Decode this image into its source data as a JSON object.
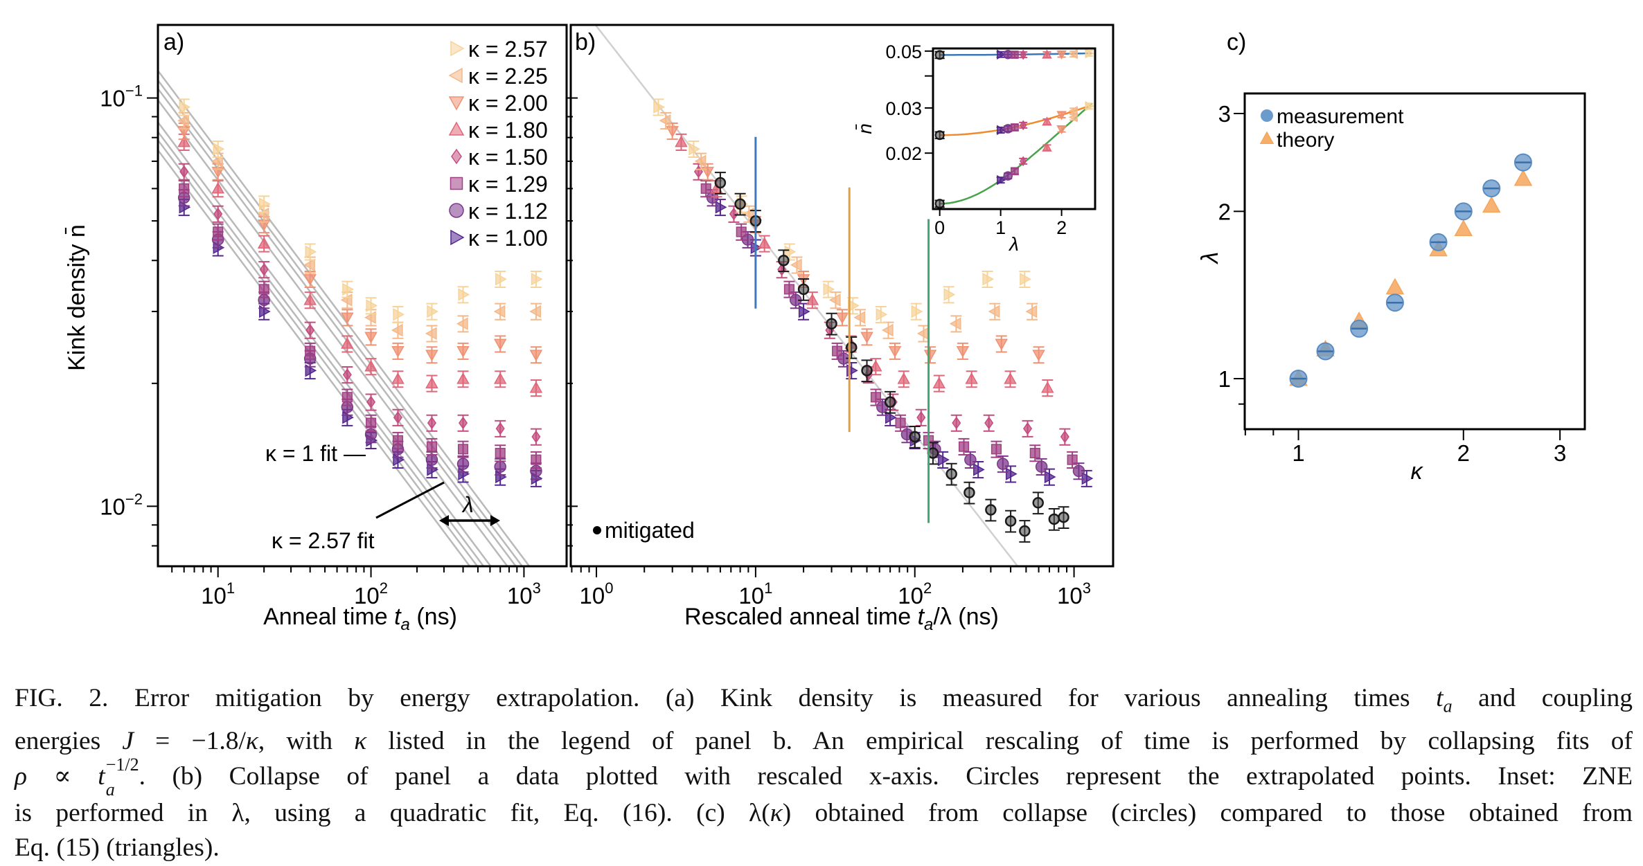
{
  "figure": {
    "caption_lines": [
      [
        {
          "t": "FIG. 2."
        },
        {
          "t": "   Error mitigation by energy extrapolation. (a) Kink density is measured for various annealing times "
        },
        {
          "t": "t",
          "s": "i"
        },
        {
          "t": "a",
          "s": "sub"
        },
        {
          "t": " and coupling"
        }
      ],
      [
        {
          "t": "energies "
        },
        {
          "t": "J",
          "s": "i"
        },
        {
          "t": " = −1.8/"
        },
        {
          "t": "κ",
          "s": "i"
        },
        {
          "t": ", with "
        },
        {
          "t": "κ",
          "s": "i"
        },
        {
          "t": " listed in the legend of panel b. An empirical rescaling of time is performed by collapsing fits of"
        }
      ],
      [
        {
          "t": "ρ",
          "s": "i"
        },
        {
          "t": " ∝ "
        },
        {
          "t": "t",
          "s": "i"
        },
        {
          "t": "a|−1/2",
          "s": "subsup"
        },
        {
          "t": ". (b) Collapse of panel a data plotted with rescaled x-axis. Circles represent the extrapolated points. Inset: ZNE"
        }
      ],
      [
        {
          "t": "is performed in λ, using a quadratic fit, Eq. (16). (c) λ("
        },
        {
          "t": "κ",
          "s": "i"
        },
        {
          "t": ") obtained from collapse (circles) compared to those obtained from"
        }
      ],
      [
        {
          "t": "Eq. (15) (triangles)."
        }
      ]
    ]
  },
  "chart_data": [
    {
      "panel": "a",
      "panel_label": "a)",
      "type": "scatter",
      "x_scale": "log",
      "y_scale": "log",
      "xlabel": "Anneal time t_a (ns)",
      "xlabel_parts": {
        "pre": "Anneal time ",
        "var": "t",
        "sub": "a",
        "post": " (ns)"
      },
      "ylabel": "Kink density n̄",
      "xlim": [
        4.05,
        1900
      ],
      "ylim": [
        0.00713,
        0.151
      ],
      "x_ticks": [
        {
          "value": 10,
          "base": "10",
          "exp": "1"
        },
        {
          "value": 100,
          "base": "10",
          "exp": "2"
        },
        {
          "value": 1000,
          "base": "10",
          "exp": "3"
        }
      ],
      "y_ticks": [
        {
          "value": 0.1,
          "base": "10",
          "exp": "−1"
        },
        {
          "value": 0.01,
          "base": "10",
          "exp": "−2"
        }
      ],
      "grid": false,
      "legend_placement": "top-right",
      "error_fraction": 0.045,
      "fit": {
        "prefactor": 0.15,
        "exponent": -0.5,
        "color": "#b9b9b9"
      },
      "annotations": {
        "kappa1_fit": "κ = 1 fit —",
        "kappa257_fit": "κ = 2.57 fit",
        "lambda": "λ"
      },
      "series": [
        {
          "name": "κ = 2.57",
          "kappa": 2.57,
          "marker": "triangle-right",
          "color": "#f7d39a",
          "t": [
            6,
            10,
            20,
            40,
            70,
            100,
            150,
            250,
            400,
            700,
            1200
          ],
          "n": [
            0.095,
            0.075,
            0.055,
            0.042,
            0.034,
            0.031,
            0.0295,
            0.03,
            0.033,
            0.036,
            0.036
          ]
        },
        {
          "name": "κ = 2.25",
          "kappa": 2.25,
          "marker": "triangle-left",
          "color": "#f4b889",
          "t": [
            6,
            10,
            20,
            40,
            70,
            100,
            150,
            250,
            400,
            700,
            1200
          ],
          "n": [
            0.088,
            0.07,
            0.052,
            0.039,
            0.032,
            0.029,
            0.027,
            0.0265,
            0.028,
            0.03,
            0.03
          ]
        },
        {
          "name": "κ = 2.00",
          "kappa": 2.0,
          "marker": "triangle-down",
          "color": "#ef9173",
          "t": [
            6,
            10,
            20,
            40,
            70,
            100,
            150,
            250,
            400,
            700,
            1200
          ],
          "n": [
            0.083,
            0.066,
            0.049,
            0.036,
            0.029,
            0.026,
            0.024,
            0.0235,
            0.024,
            0.025,
            0.0235
          ]
        },
        {
          "name": "κ = 1.80",
          "kappa": 1.8,
          "marker": "triangle-up",
          "color": "#e06779",
          "t": [
            6,
            10,
            20,
            40,
            70,
            100,
            150,
            250,
            400,
            700,
            1200
          ],
          "n": [
            0.078,
            0.06,
            0.044,
            0.032,
            0.025,
            0.022,
            0.0205,
            0.02,
            0.0205,
            0.0205,
            0.0195
          ]
        },
        {
          "name": "κ = 1.50",
          "kappa": 1.5,
          "marker": "diamond",
          "color": "#c44d7f",
          "t": [
            6,
            10,
            20,
            40,
            70,
            100,
            150,
            250,
            400,
            700,
            1200
          ],
          "n": [
            0.066,
            0.052,
            0.038,
            0.027,
            0.021,
            0.018,
            0.0165,
            0.016,
            0.016,
            0.0155,
            0.0148
          ]
        },
        {
          "name": "κ = 1.29",
          "kappa": 1.29,
          "marker": "square",
          "color": "#a03f83",
          "t": [
            6,
            10,
            20,
            40,
            70,
            100,
            150,
            250,
            400,
            700,
            1200
          ],
          "n": [
            0.06,
            0.047,
            0.034,
            0.024,
            0.0185,
            0.016,
            0.0145,
            0.014,
            0.0138,
            0.0135,
            0.013
          ]
        },
        {
          "name": "κ = 1.12",
          "kappa": 1.12,
          "marker": "circle",
          "color": "#7c368a",
          "t": [
            6,
            10,
            20,
            40,
            70,
            100,
            150,
            250,
            400,
            700,
            1200
          ],
          "n": [
            0.057,
            0.045,
            0.032,
            0.023,
            0.0175,
            0.015,
            0.0138,
            0.013,
            0.0127,
            0.0125,
            0.0122
          ]
        },
        {
          "name": "κ = 1.00",
          "kappa": 1.0,
          "marker": "triangle-right",
          "color": "#54258f",
          "t": [
            6,
            10,
            20,
            40,
            70,
            100,
            150,
            250,
            400,
            700,
            1200
          ],
          "n": [
            0.054,
            0.043,
            0.03,
            0.0215,
            0.0165,
            0.0145,
            0.013,
            0.0123,
            0.012,
            0.0118,
            0.0117
          ]
        }
      ]
    },
    {
      "panel": "b",
      "panel_label": "b)",
      "type": "scatter",
      "x_scale": "log",
      "y_scale": "log",
      "xlabel": "Rescaled anneal time t_a/λ (ns)",
      "xlabel_parts": {
        "pre": "Rescaled anneal time ",
        "var": "t",
        "sub": "a",
        "post": "/λ (ns)"
      },
      "xlim": [
        0.69,
        1760
      ],
      "ylim": [
        0.00713,
        0.151
      ],
      "x_ticks": [
        {
          "value": 1,
          "base": "10",
          "exp": "0"
        },
        {
          "value": 10,
          "base": "10",
          "exp": "1"
        },
        {
          "value": 100,
          "base": "10",
          "exp": "2"
        },
        {
          "value": 1000,
          "base": "10",
          "exp": "3"
        }
      ],
      "note": "same series as panel a, with x = t_a / λ(κ) from panel c",
      "mitigated": {
        "name": "mitigated",
        "color": "#1a1a1a",
        "x": [
          6,
          8,
          10,
          15,
          20,
          30,
          40,
          50,
          70,
          100,
          130,
          170,
          220,
          300,
          400,
          490,
          595,
          750,
          860
        ],
        "n": [
          0.062,
          0.055,
          0.05,
          0.04,
          0.034,
          0.028,
          0.0245,
          0.0215,
          0.018,
          0.0148,
          0.0135,
          0.012,
          0.0108,
          0.0098,
          0.0092,
          0.0087,
          0.0102,
          0.0093,
          0.0094
        ],
        "error_fraction": 0.06
      },
      "vlines": [
        {
          "x": 10,
          "n_range": [
            0.0305,
            0.0803
          ],
          "color": "#3a7ac0"
        },
        {
          "x": 38.8,
          "n_range": [
            0.0152,
            0.0604
          ],
          "color": "#e0a040"
        },
        {
          "x": 122,
          "n_range": [
            0.0091,
            0.0505
          ],
          "color": "#3fa870"
        }
      ],
      "inset": {
        "xlabel": "λ",
        "ylabel": "n̄",
        "x_scale": "linear",
        "y_scale": "log",
        "xlim": [
          -0.11,
          2.55
        ],
        "ylim": [
          0.0121,
          0.0512
        ],
        "x_ticks": [
          {
            "value": 0,
            "label": "0"
          },
          {
            "value": 1,
            "label": "1"
          },
          {
            "value": 2,
            "label": "2"
          }
        ],
        "y_ticks": [
          {
            "value": 0.05,
            "label": "0.05"
          },
          {
            "value": 0.04,
            "label": ""
          },
          {
            "value": 0.03,
            "label": "0.03"
          },
          {
            "value": 0.02,
            "label": "0.02"
          }
        ],
        "lambda": [
          1.0,
          1.12,
          1.23,
          1.37,
          1.76,
          2.0,
          2.2,
          2.45
        ],
        "curves": [
          {
            "color": "#3a76b8",
            "fit_coefficients": [
              0.0483,
              0,
              0.00012
            ],
            "mitigated": 0.0483,
            "n": [
              0.0485,
              0.0485,
              0.0484,
              0.0484,
              0.0484,
              0.0486,
              0.0487,
              0.049
            ]
          },
          {
            "color": "#f08a2c",
            "fit_coefficients": [
              0.0235,
              0,
              0.00117
            ],
            "mitigated": 0.0235,
            "n": [
              0.0246,
              0.0249,
              0.0252,
              0.0257,
              0.0265,
              0.0282,
              0.0292,
              0.0305
            ]
          },
          {
            "color": "#4aa24a",
            "fit_coefficients": [
              0.0127,
              0,
              0.00297
            ],
            "mitigated": 0.0127,
            "n": [
              0.0157,
              0.0163,
              0.017,
              0.0186,
              0.021,
              0.0248,
              0.0276,
              0.0305
            ]
          }
        ]
      }
    },
    {
      "panel": "c",
      "panel_label": "c)",
      "type": "scatter",
      "x_scale": "log",
      "y_scale": "log",
      "xlabel": "κ",
      "ylabel": "λ",
      "xlim": [
        0.798,
        3.33
      ],
      "ylim": [
        0.811,
        3.26
      ],
      "x_ticks": [
        {
          "value": 1,
          "label": "1"
        },
        {
          "value": 2,
          "label": "2"
        },
        {
          "value": 3,
          "label": "3"
        }
      ],
      "x_minor": [
        0.8,
        0.9
      ],
      "y_ticks": [
        {
          "value": 1,
          "label": "1"
        },
        {
          "value": 2,
          "label": "2"
        },
        {
          "value": 3,
          "label": "3"
        }
      ],
      "y_minor": [
        0.9
      ],
      "legend_placement": "top-left",
      "series": [
        {
          "name": "measurement",
          "marker": "circle",
          "color": "#6b9bcc",
          "line_color": "#3a6ea8",
          "kappa": [
            1.0,
            1.12,
            1.29,
            1.5,
            1.8,
            2.0,
            2.25,
            2.57
          ],
          "lambda": [
            1.0,
            1.12,
            1.23,
            1.37,
            1.76,
            2.0,
            2.2,
            2.45
          ]
        },
        {
          "name": "theory",
          "marker": "triangle-up",
          "color": "#f5a65b",
          "kappa": [
            1.0,
            1.12,
            1.29,
            1.5,
            1.8,
            2.0,
            2.25,
            2.57
          ],
          "lambda": [
            1.0,
            1.13,
            1.27,
            1.46,
            1.71,
            1.86,
            2.05,
            2.29
          ]
        }
      ]
    }
  ]
}
